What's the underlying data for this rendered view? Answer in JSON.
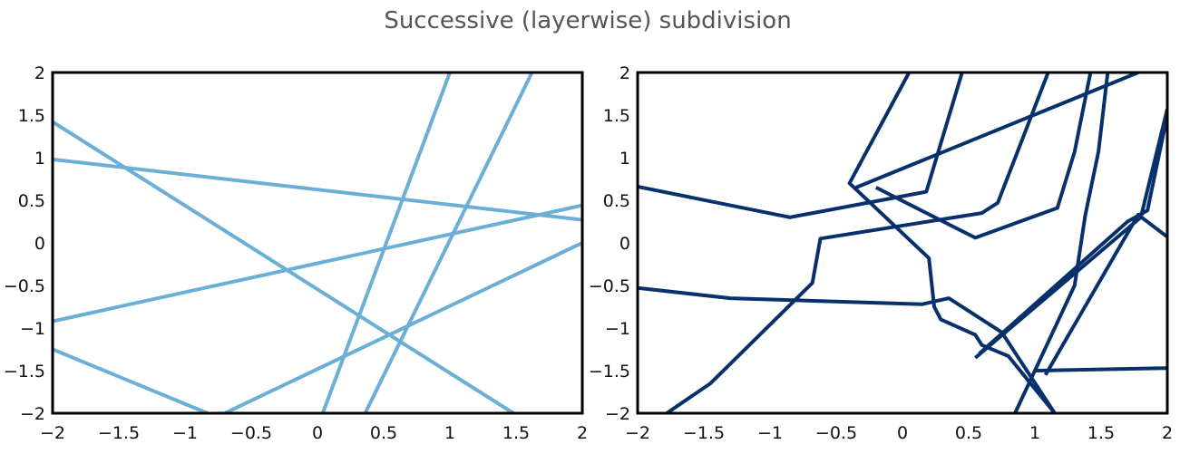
{
  "figure": {
    "title": "Successive (layerwise) subdivision"
  },
  "chart_data": [
    {
      "type": "line",
      "title": "",
      "xlabel": "",
      "ylabel": "",
      "xlim": [
        -2,
        2
      ],
      "ylim": [
        -2,
        2
      ],
      "grid": false,
      "line_color": "#6baed6",
      "xticks": [
        "−2",
        "−1.5",
        "−1",
        "−0.5",
        "0",
        "0.5",
        "1",
        "1.5",
        "2"
      ],
      "yticks": [
        "−2",
        "−1.5",
        "−1",
        "−0.5",
        "0",
        "0.5",
        "1",
        "1.5",
        "2"
      ],
      "series": [
        {
          "points": [
            [
              -2,
              1.42
            ],
            [
              1.48,
              -2.0
            ]
          ]
        },
        {
          "points": [
            [
              -2,
              0.98
            ],
            [
              2.0,
              0.27
            ]
          ]
        },
        {
          "points": [
            [
              -2,
              -0.92
            ],
            [
              2.0,
              0.44
            ]
          ]
        },
        {
          "points": [
            [
              -2,
              -1.25
            ],
            [
              -0.83,
              -2.0
            ]
          ]
        },
        {
          "points": [
            [
              -0.7,
              -2.0
            ],
            [
              2.0,
              0.0
            ]
          ]
        },
        {
          "points": [
            [
              0.04,
              -2.0
            ],
            [
              1.0,
              2.0
            ]
          ]
        },
        {
          "points": [
            [
              0.36,
              -2.0
            ],
            [
              1.62,
              2.0
            ]
          ]
        }
      ]
    },
    {
      "type": "line",
      "title": "",
      "xlabel": "",
      "ylabel": "",
      "xlim": [
        -2,
        2
      ],
      "ylim": [
        -2,
        2
      ],
      "grid": false,
      "line_color": "#08306b",
      "xticks": [
        "−2",
        "−1.5",
        "−1",
        "−0.5",
        "0",
        "0.5",
        "1",
        "1.5",
        "2"
      ],
      "yticks": [
        "−2",
        "−1.5",
        "−1",
        "−0.5",
        "0",
        "0.5",
        "1",
        "1.5",
        "2"
      ],
      "series": [
        {
          "points": [
            [
              -2,
              0.66
            ],
            [
              -0.85,
              0.3
            ],
            [
              0.18,
              0.6
            ],
            [
              0.45,
              2.0
            ]
          ]
        },
        {
          "points": [
            [
              -2,
              -0.53
            ],
            [
              -1.3,
              -0.65
            ],
            [
              0.15,
              -0.72
            ],
            [
              0.35,
              -0.65
            ],
            [
              0.75,
              -1.05
            ],
            [
              1.15,
              -2.0
            ]
          ]
        },
        {
          "points": [
            [
              -1.78,
              -2.0
            ],
            [
              -1.45,
              -1.65
            ],
            [
              -0.68,
              -0.47
            ],
            [
              -0.62,
              0.05
            ],
            [
              0.6,
              0.35
            ],
            [
              0.72,
              0.47
            ],
            [
              1.1,
              2.0
            ]
          ]
        },
        {
          "points": [
            [
              0.05,
              2.0
            ],
            [
              -0.4,
              0.7
            ],
            [
              0.2,
              -0.18
            ],
            [
              0.24,
              -0.75
            ],
            [
              0.29,
              -0.9
            ],
            [
              0.55,
              -1.08
            ],
            [
              0.6,
              -1.2
            ],
            [
              0.8,
              -1.33
            ],
            [
              1.15,
              -2.0
            ]
          ]
        },
        {
          "points": [
            [
              -0.2,
              0.65
            ],
            [
              0.55,
              0.06
            ],
            [
              1.17,
              0.41
            ],
            [
              1.3,
              1.07
            ],
            [
              1.42,
              2.0
            ]
          ]
        },
        {
          "points": [
            [
              0.85,
              -2.0
            ],
            [
              1.3,
              -0.5
            ],
            [
              1.38,
              0.32
            ],
            [
              1.48,
              1.07
            ],
            [
              1.55,
              2.0
            ]
          ]
        },
        {
          "points": [
            [
              1.0,
              -1.5
            ],
            [
              2.0,
              -1.47
            ]
          ]
        },
        {
          "points": [
            [
              1.08,
              -1.55
            ],
            [
              1.78,
              0.33
            ],
            [
              2.0,
              0.07
            ]
          ]
        },
        {
          "points": [
            [
              -0.35,
              0.65
            ],
            [
              1.78,
              2.0
            ]
          ]
        },
        {
          "points": [
            [
              0.55,
              -1.35
            ],
            [
              1.8,
              0.3
            ],
            [
              2.0,
              1.57
            ]
          ]
        },
        {
          "points": [
            [
              0.58,
              -1.3
            ],
            [
              1.7,
              0.25
            ],
            [
              1.85,
              0.38
            ],
            [
              2.0,
              1.5
            ]
          ]
        }
      ]
    }
  ]
}
